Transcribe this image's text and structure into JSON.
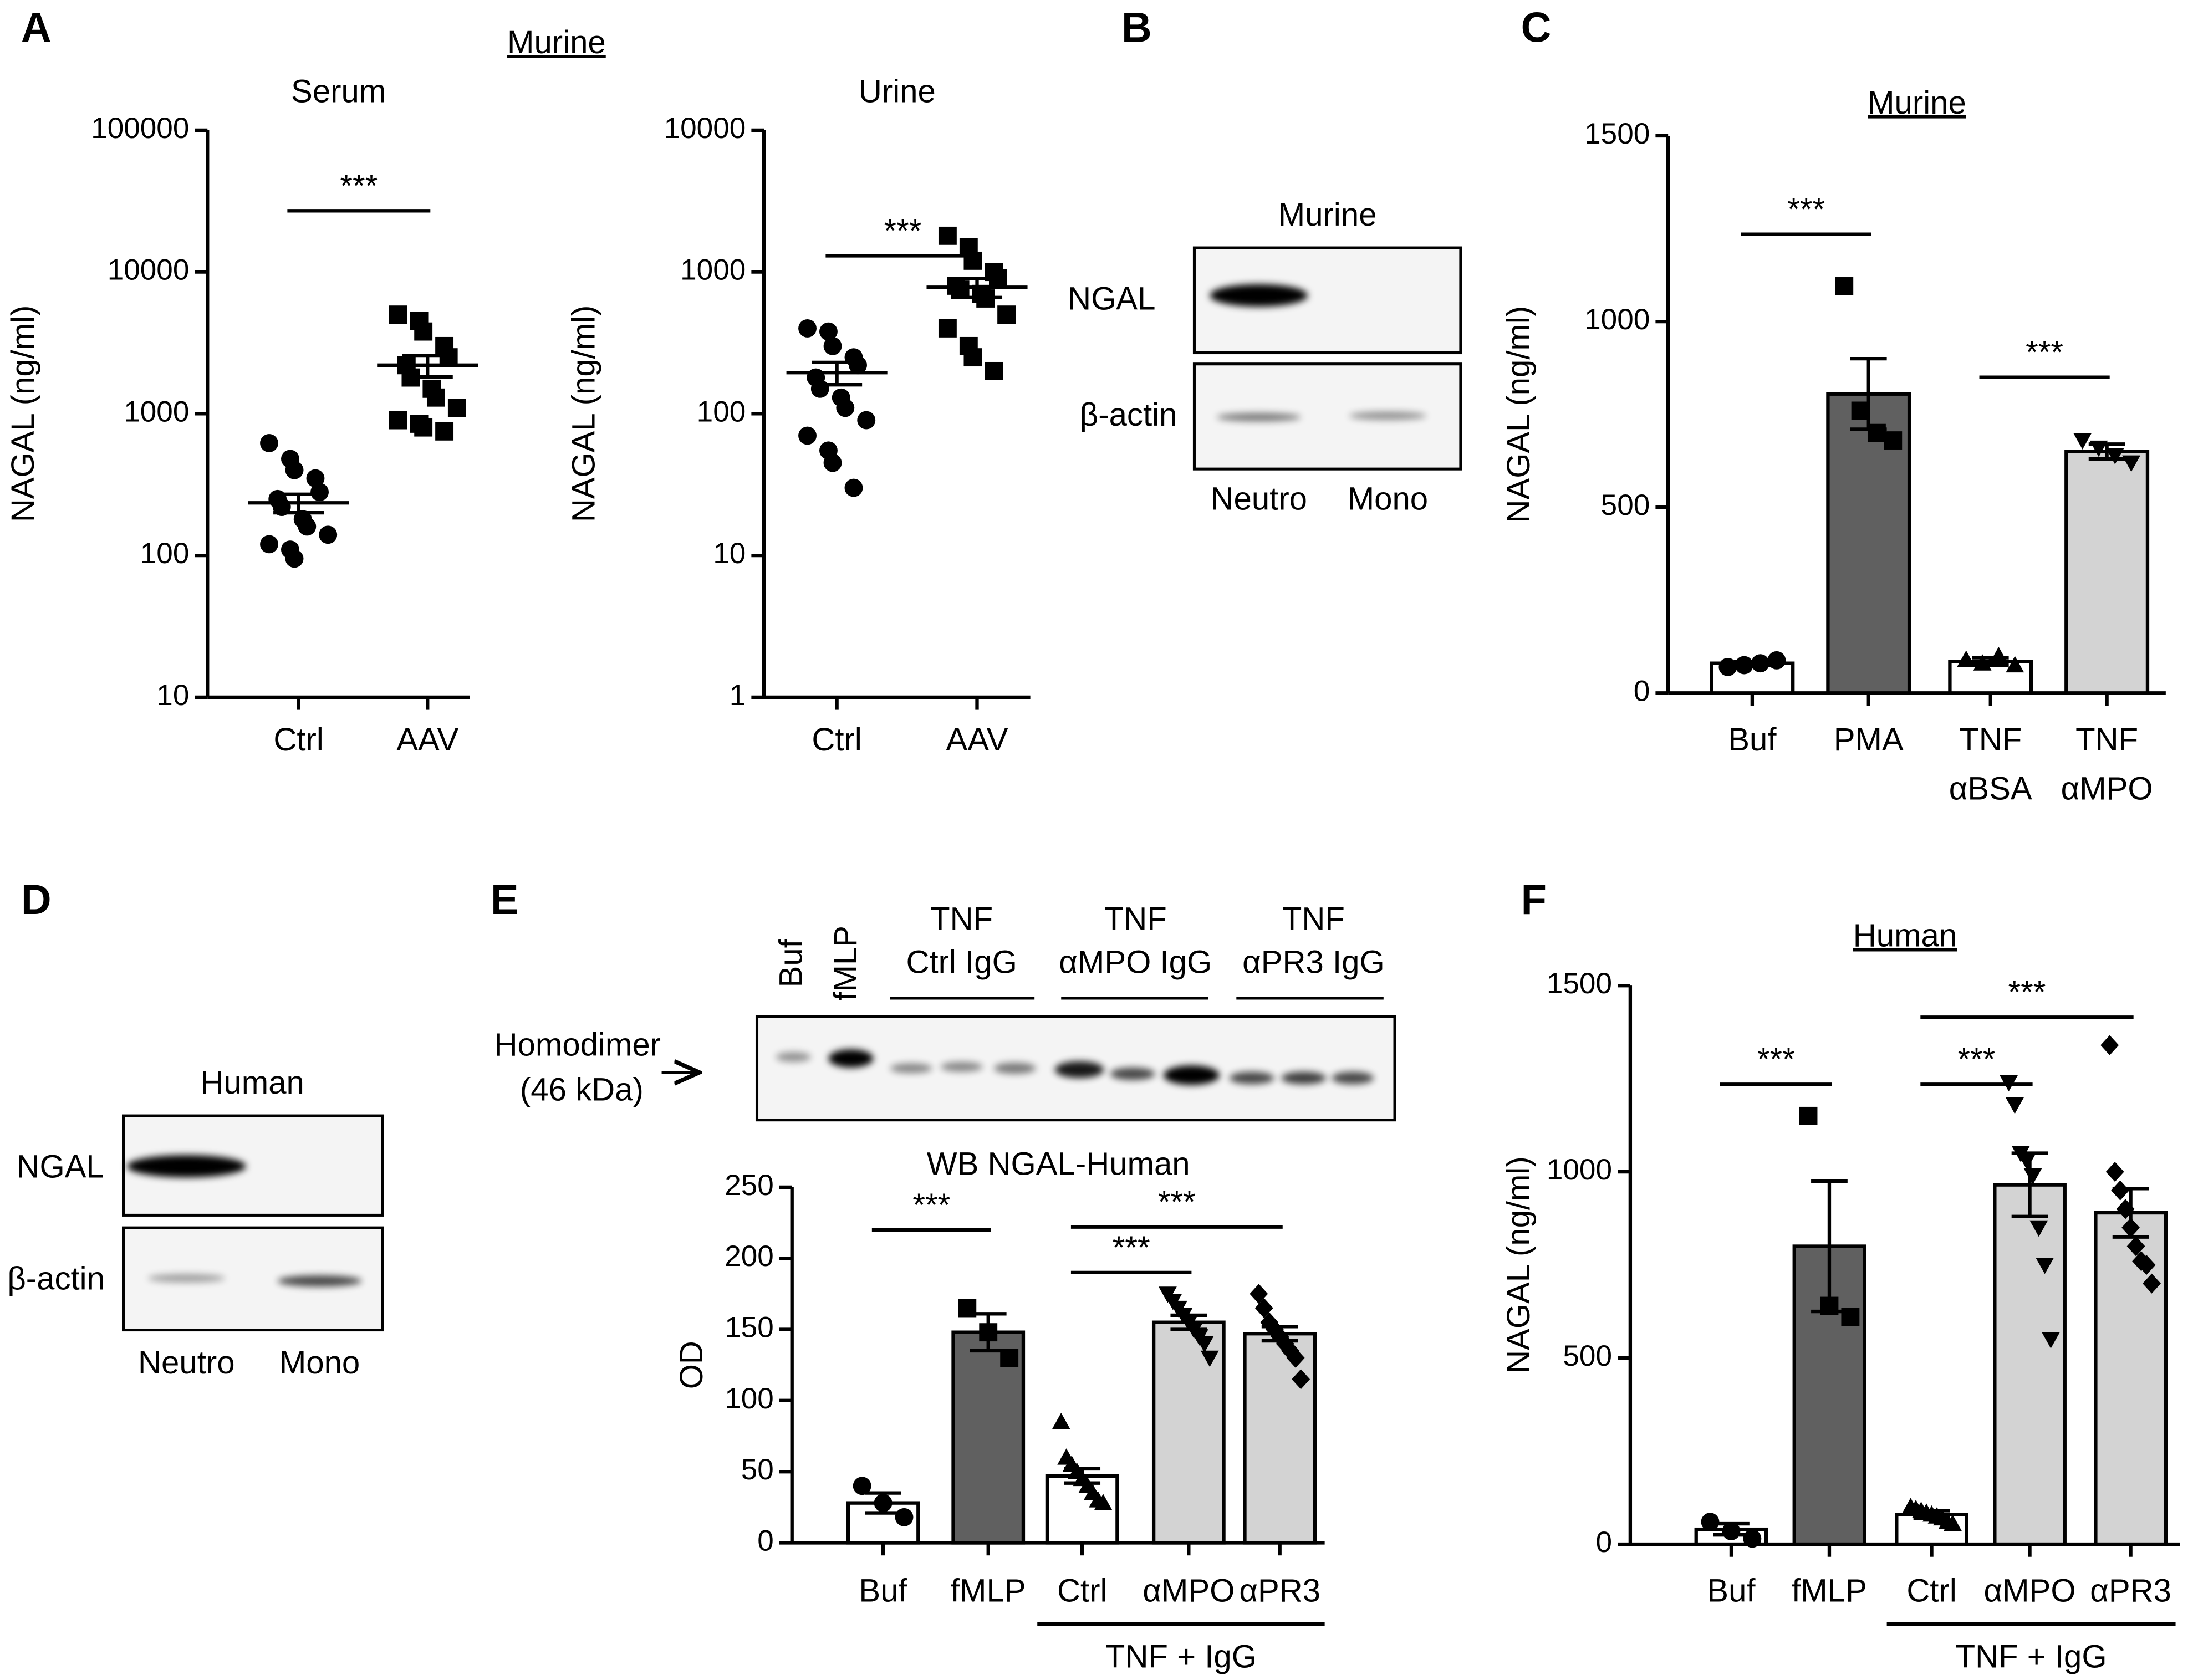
{
  "panel_labels": [
    "A",
    "B",
    "C",
    "D",
    "E",
    "F"
  ],
  "panel_a_title": "Murine",
  "blots": [
    {
      "title": "Murine",
      "rows": [
        "NGAL",
        "β-actin"
      ],
      "lanes": [
        "Neutro",
        "Mono"
      ]
    },
    {
      "title": "Human",
      "rows": [
        "NGAL",
        "β-actin"
      ],
      "lanes": [
        "Neutro",
        "Mono"
      ]
    },
    {
      "row_label": [
        "Homodimer",
        "(46 kDa)"
      ],
      "lanes": [
        "Buf",
        "fMLP"
      ],
      "groups": [
        [
          "TNF",
          "Ctrl IgG"
        ],
        [
          "TNF",
          "αMPO IgG"
        ],
        [
          "TNF",
          "αPR3 IgG"
        ]
      ]
    }
  ],
  "chart_data": [
    {
      "type": "strip",
      "title": "Serum",
      "y_label": "NAGAL (ng/ml)",
      "log": true,
      "categories": [
        "Ctrl",
        "AAV"
      ],
      "markers": [
        "circle",
        "square"
      ],
      "points": [
        [
          620,
          480,
          400,
          350,
          280,
          250,
          220,
          180,
          160,
          140,
          120,
          110,
          95
        ],
        [
          5000,
          4500,
          3800,
          3000,
          2500,
          2200,
          1800,
          1500,
          1300,
          1100,
          900,
          850,
          800,
          750
        ]
      ],
      "means": [
        235,
        2200
      ],
      "errors": [
        35,
        380
      ],
      "ylim": [
        10,
        100000
      ],
      "yticks": [
        10,
        100,
        1000,
        10000,
        100000
      ],
      "significance": [
        {
          "between": [
            0,
            1
          ],
          "y": 27000,
          "label": "***"
        }
      ]
    },
    {
      "type": "strip",
      "title": "Urine",
      "y_label": "NAGAL (ng/ml)",
      "log": true,
      "categories": [
        "Ctrl",
        "AAV"
      ],
      "markers": [
        "circle",
        "square"
      ],
      "points": [
        [
          400,
          380,
          300,
          250,
          220,
          180,
          150,
          130,
          110,
          90,
          70,
          55,
          45,
          30
        ],
        [
          1800,
          1500,
          1200,
          1000,
          900,
          800,
          750,
          700,
          650,
          500,
          400,
          300,
          250,
          200
        ]
      ],
      "means": [
        195,
        780
      ],
      "errors": [
        35,
        120
      ],
      "ylim": [
        1,
        10000
      ],
      "yticks": [
        1,
        10,
        100,
        1000,
        10000
      ],
      "significance": [
        {
          "between": [
            0,
            1
          ],
          "y": 1300,
          "label": "***"
        }
      ]
    },
    {
      "type": "bar",
      "title": "Murine",
      "title_underline": true,
      "y_label": "NAGAL (ng/ml)",
      "categories": [
        [
          "Buf"
        ],
        [
          "PMA"
        ],
        [
          "TNF",
          "αBSA"
        ],
        [
          "TNF",
          "αMPO"
        ]
      ],
      "values": [
        80,
        805,
        85,
        650
      ],
      "errors": [
        5,
        95,
        10,
        20
      ],
      "colors": [
        "#ffffff",
        "#606060",
        "#ffffff",
        "#d3d3d3"
      ],
      "markers": [
        "circle",
        "square",
        "triangle",
        "triangle-down"
      ],
      "points": [
        [
          70,
          75,
          80,
          88
        ],
        [
          1095,
          760,
          700,
          680
        ],
        [
          90,
          80,
          100,
          75
        ],
        [
          680,
          660,
          640,
          620
        ]
      ],
      "ylim": [
        0,
        1500
      ],
      "yticks": [
        0,
        500,
        1000,
        1500
      ],
      "significance": [
        {
          "between": [
            0,
            1
          ],
          "y": 1235,
          "label": "***"
        },
        {
          "between": [
            2,
            3
          ],
          "y": 850,
          "label": "***"
        }
      ]
    },
    {
      "type": "bar",
      "title": "WB NGAL-Human",
      "title_underline": false,
      "y_label": "OD",
      "categories": [
        [
          "Buf"
        ],
        [
          "fMLP"
        ],
        [
          "Ctrl"
        ],
        [
          "αMPO"
        ],
        [
          "αPR3"
        ]
      ],
      "values": [
        28,
        148,
        47,
        155,
        147
      ],
      "errors": [
        7,
        13,
        5,
        5,
        5
      ],
      "colors": [
        "#ffffff",
        "#606060",
        "#ffffff",
        "#d3d3d3",
        "#d3d3d3"
      ],
      "markers": [
        "circle",
        "square",
        "triangle",
        "triangle-down",
        "diamond"
      ],
      "points": [
        [
          40,
          28,
          18
        ],
        [
          165,
          148,
          130
        ],
        [
          85,
          60,
          55,
          50,
          45,
          40,
          35,
          30,
          28
        ],
        [
          175,
          170,
          165,
          160,
          155,
          150,
          145,
          140,
          130
        ],
        [
          175,
          165,
          155,
          150,
          145,
          140,
          135,
          130,
          115
        ]
      ],
      "ylim": [
        0,
        250
      ],
      "yticks": [
        0,
        50,
        100,
        150,
        200,
        250
      ],
      "group_label": "TNF + IgG",
      "group_span": [
        2,
        4
      ],
      "significance": [
        {
          "between": [
            0,
            1
          ],
          "y": 220,
          "label": "***"
        },
        {
          "between": [
            2,
            3
          ],
          "y": 190,
          "label": "***"
        },
        {
          "between": [
            2,
            4
          ],
          "y": 222,
          "label": "***"
        }
      ]
    },
    {
      "type": "bar",
      "title": "Human",
      "title_underline": true,
      "y_label": "NAGAL (ng/ml)",
      "categories": [
        [
          "Buf"
        ],
        [
          "fMLP"
        ],
        [
          "Ctrl"
        ],
        [
          "αMPO"
        ],
        [
          "αPR3"
        ]
      ],
      "values": [
        40,
        800,
        80,
        965,
        890
      ],
      "errors": [
        15,
        175,
        10,
        85,
        65
      ],
      "colors": [
        "#ffffff",
        "#606060",
        "#ffffff",
        "#d3d3d3",
        "#d3d3d3"
      ],
      "markers": [
        "circle",
        "square",
        "triangle",
        "triangle-down",
        "diamond"
      ],
      "points": [
        [
          60,
          35,
          15
        ],
        [
          1150,
          640,
          610
        ],
        [
          100,
          95,
          90,
          85,
          80,
          75,
          70,
          60,
          55
        ],
        [
          1240,
          1180,
          1050,
          1030,
          990,
          850,
          750,
          550
        ],
        [
          1340,
          1000,
          950,
          900,
          850,
          800,
          760,
          750,
          700
        ]
      ],
      "ylim": [
        0,
        1500
      ],
      "yticks": [
        0,
        500,
        1000,
        1500
      ],
      "group_label": "TNF + IgG",
      "group_span": [
        2,
        4
      ],
      "significance": [
        {
          "between": [
            0,
            1
          ],
          "y": 1235,
          "label": "***"
        },
        {
          "between": [
            2,
            3
          ],
          "y": 1235,
          "label": "***"
        },
        {
          "between": [
            2,
            4
          ],
          "y": 1415,
          "label": "***"
        }
      ]
    }
  ]
}
